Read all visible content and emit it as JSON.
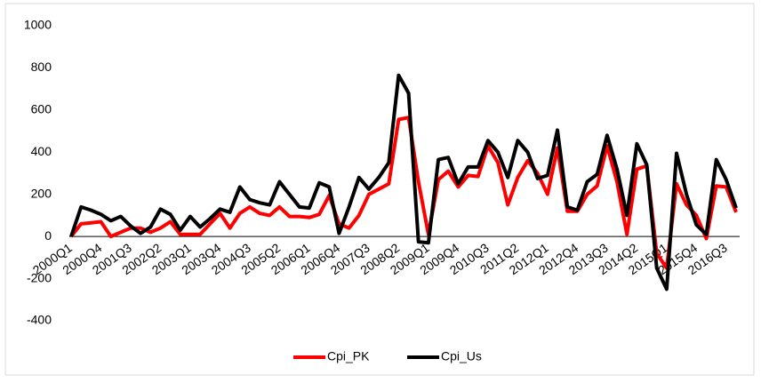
{
  "chart_data": {
    "type": "line",
    "categories": [
      "2000Q1",
      null,
      null,
      "2000Q4",
      null,
      null,
      "2001Q3",
      null,
      null,
      "2002Q2",
      null,
      null,
      "2003Q1",
      null,
      null,
      "2003Q4",
      null,
      null,
      "2004Q3",
      null,
      null,
      "2005Q2",
      null,
      null,
      "2006Q1",
      null,
      null,
      "2006Q4",
      null,
      null,
      "2007Q3",
      null,
      null,
      "2008Q2",
      null,
      null,
      "2009Q1",
      null,
      null,
      "2009Q4",
      null,
      null,
      "2010Q3",
      null,
      null,
      "2011Q2",
      null,
      null,
      "2012Q1",
      null,
      null,
      "2012Q4",
      null,
      null,
      "2013Q3",
      null,
      null,
      "2014Q2",
      null,
      null,
      "2015Q1",
      null,
      null,
      "2015Q4",
      null,
      null,
      "2016Q3",
      null
    ],
    "series": [
      {
        "name": "Cpi_PK",
        "color": "#ff0000",
        "values": [
          0,
          60,
          65,
          70,
          0,
          20,
          40,
          40,
          20,
          40,
          70,
          10,
          10,
          10,
          60,
          110,
          40,
          110,
          140,
          110,
          100,
          140,
          95,
          95,
          90,
          105,
          195,
          60,
          40,
          100,
          200,
          225,
          250,
          555,
          565,
          260,
          10,
          270,
          310,
          235,
          290,
          285,
          430,
          350,
          150,
          280,
          360,
          300,
          200,
          420,
          120,
          120,
          200,
          240,
          430,
          260,
          10,
          320,
          335,
          -80,
          -150,
          250,
          150,
          100,
          -10,
          240,
          235,
          115
        ]
      },
      {
        "name": "Cpi_Us",
        "color": "#000000",
        "values": [
          0,
          140,
          125,
          105,
          75,
          95,
          50,
          15,
          45,
          130,
          105,
          30,
          95,
          45,
          85,
          130,
          115,
          235,
          175,
          160,
          150,
          260,
          200,
          140,
          135,
          255,
          235,
          15,
          140,
          280,
          225,
          280,
          350,
          765,
          680,
          -25,
          -30,
          365,
          375,
          250,
          330,
          330,
          455,
          400,
          280,
          455,
          400,
          275,
          290,
          505,
          140,
          125,
          260,
          295,
          480,
          320,
          100,
          440,
          340,
          -150,
          -250,
          395,
          200,
          55,
          10,
          365,
          270,
          135
        ]
      }
    ],
    "ylim": [
      -400,
      1000
    ],
    "yticks": [
      -400,
      -200,
      0,
      200,
      400,
      600,
      800,
      1000
    ],
    "grid": false,
    "legend": "bottom"
  }
}
